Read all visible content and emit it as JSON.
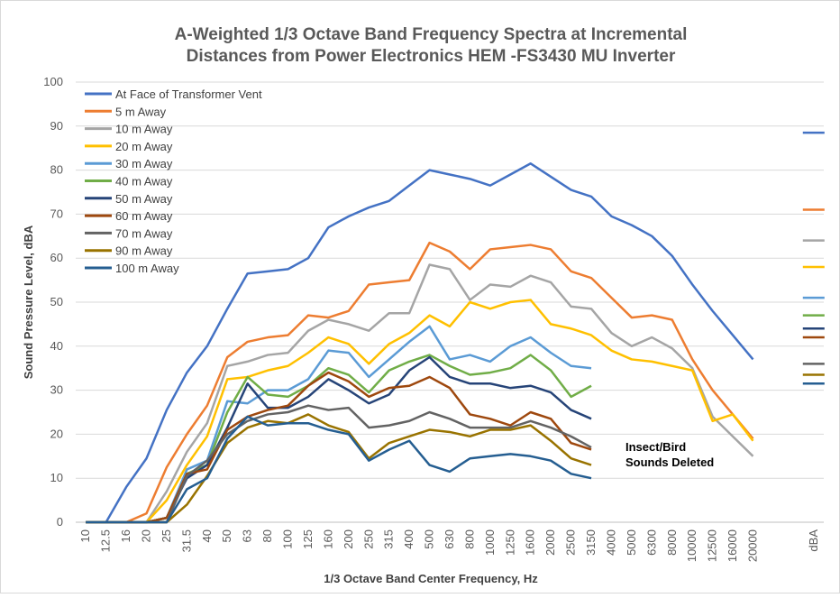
{
  "chart_data": {
    "type": "line",
    "title": [
      "A-Weighted 1/3 Octave Band Frequency Spectra at Incremental",
      "Distances from Power Electronics HEM -FS3430 MU Inverter"
    ],
    "x_label": "1/3 Octave Band Center Frequency, Hz",
    "y_label": "Sound Pressure Level, dBA",
    "annotation": [
      "Insect/Bird",
      "Sounds Deleted"
    ],
    "categories": [
      "10",
      "12.5",
      "16",
      "20",
      "25",
      "31.5",
      "40",
      "50",
      "63",
      "80",
      "100",
      "125",
      "160",
      "200",
      "250",
      "315",
      "400",
      "500",
      "630",
      "800",
      "1000",
      "1250",
      "1600",
      "2000",
      "2500",
      "3150",
      "4000",
      "5000",
      "6300",
      "8000",
      "10000",
      "12500",
      "16000",
      "20000",
      null,
      null,
      "dBA"
    ],
    "ylim": [
      0,
      100
    ],
    "yticks": [
      0,
      10,
      20,
      30,
      40,
      50,
      60,
      70,
      80,
      90,
      100
    ],
    "grid": true,
    "legend": "top-left",
    "series": [
      {
        "name": "At Face of Transformer Vent",
        "color": "#4472c4",
        "values": [
          0,
          0,
          8,
          14.5,
          25.5,
          34,
          40,
          48.5,
          56.5,
          57,
          57.5,
          60,
          67,
          69.5,
          71.5,
          73,
          76.5,
          80,
          79,
          78,
          76.5,
          79,
          81.5,
          78.5,
          75.5,
          74,
          69.5,
          67.5,
          65,
          60.5,
          54,
          48,
          42.5,
          37,
          null,
          null,
          88.5
        ]
      },
      {
        "name": "5 m Away",
        "color": "#ed7d31",
        "values": [
          0,
          0,
          0,
          2,
          12.5,
          20,
          26.5,
          37.5,
          41,
          42,
          42.5,
          47,
          46.5,
          48,
          54,
          54.5,
          55,
          63.5,
          61.5,
          57.5,
          62,
          62.5,
          63,
          62,
          57,
          55.5,
          51,
          46.5,
          47,
          46,
          37,
          30,
          24.5,
          19,
          null,
          null,
          71
        ]
      },
      {
        "name": "10 m Away",
        "color": "#a5a5a5",
        "values": [
          0,
          0,
          0,
          0,
          7,
          16,
          22.5,
          35.5,
          36.5,
          38,
          38.5,
          43.5,
          46,
          45,
          43.5,
          47.5,
          47.5,
          58.5,
          57.5,
          50.5,
          54,
          53.5,
          56,
          54.5,
          49,
          48.5,
          43,
          40,
          42,
          39.5,
          35,
          24,
          19.5,
          15,
          null,
          null,
          64
        ]
      },
      {
        "name": "20 m Away",
        "color": "#ffc000",
        "values": [
          0,
          0,
          0,
          0,
          5,
          13,
          19.5,
          32.5,
          33,
          34.5,
          35.5,
          38.5,
          42,
          40.5,
          36,
          40.5,
          43,
          47,
          44.5,
          50,
          48.5,
          50,
          50.5,
          45,
          44,
          42.5,
          39,
          37,
          36.5,
          35.5,
          34.5,
          23,
          24.5,
          18.5,
          null,
          null,
          58
        ]
      },
      {
        "name": "30 m Away",
        "color": "#5b9bd5",
        "values": [
          0,
          0,
          0,
          0,
          1,
          12,
          14,
          27.5,
          27,
          30,
          30,
          32.5,
          39,
          38.5,
          33,
          37,
          41,
          44.5,
          37,
          38,
          36.5,
          40,
          42,
          38.5,
          35.5,
          35,
          null,
          null,
          null,
          null,
          null,
          null,
          null,
          null,
          null,
          null,
          51
        ]
      },
      {
        "name": "40 m Away",
        "color": "#70ad47",
        "values": [
          0,
          0,
          0,
          0,
          1,
          11,
          13,
          25,
          33,
          29,
          28.5,
          31,
          35,
          33.5,
          29.5,
          34.5,
          36.5,
          38,
          35.5,
          33.5,
          34,
          35,
          38,
          34.5,
          28.5,
          31,
          null,
          null,
          null,
          null,
          null,
          null,
          null,
          null,
          null,
          null,
          47
        ]
      },
      {
        "name": "50 m Away",
        "color": "#264478",
        "values": [
          0,
          0,
          0,
          0,
          1,
          10,
          13,
          21.5,
          31.5,
          26,
          26,
          28.5,
          32.5,
          30,
          27,
          29,
          34.5,
          37.5,
          33,
          31.5,
          31.5,
          30.5,
          31,
          29.5,
          25.5,
          23.5,
          null,
          null,
          null,
          null,
          null,
          null,
          null,
          null,
          null,
          null,
          44
        ]
      },
      {
        "name": "60 m Away",
        "color": "#9e480e",
        "values": [
          0,
          0,
          0,
          0,
          1,
          11,
          12,
          21,
          24,
          25.5,
          26.5,
          31,
          34,
          32,
          28.5,
          30.5,
          31,
          33,
          30.5,
          24.5,
          23.5,
          22,
          25,
          23.5,
          18,
          16.5,
          null,
          null,
          null,
          null,
          null,
          null,
          null,
          null,
          null,
          null,
          42
        ]
      },
      {
        "name": "70 m Away",
        "color": "#636363",
        "values": [
          0,
          0,
          0,
          0,
          0,
          10.5,
          14,
          20,
          23,
          24.5,
          25,
          26.5,
          25.5,
          26,
          21.5,
          22,
          23,
          25,
          23.5,
          21.5,
          21.5,
          21.5,
          23,
          21.5,
          19.5,
          17,
          null,
          null,
          null,
          null,
          null,
          null,
          null,
          null,
          null,
          null,
          36
        ]
      },
      {
        "name": "90 m Away",
        "color": "#997300",
        "values": [
          0,
          0,
          0,
          0,
          0,
          4,
          10.5,
          18,
          21.5,
          23,
          22.5,
          24.5,
          22,
          20.5,
          14.5,
          18,
          19.5,
          21,
          20.5,
          19.5,
          21,
          21,
          22,
          18.5,
          14.5,
          13,
          null,
          null,
          null,
          null,
          null,
          null,
          null,
          null,
          null,
          null,
          33.5
        ]
      },
      {
        "name": "100 m Away",
        "color": "#255e91",
        "values": [
          0,
          0,
          0,
          0,
          0,
          7.5,
          10,
          19,
          24,
          22,
          22.5,
          22.5,
          21,
          20,
          14,
          16.5,
          18.5,
          13,
          11.5,
          14.5,
          15,
          15.5,
          15,
          14,
          11,
          10,
          null,
          null,
          null,
          null,
          null,
          null,
          null,
          null,
          null,
          null,
          31.5
        ]
      }
    ]
  }
}
